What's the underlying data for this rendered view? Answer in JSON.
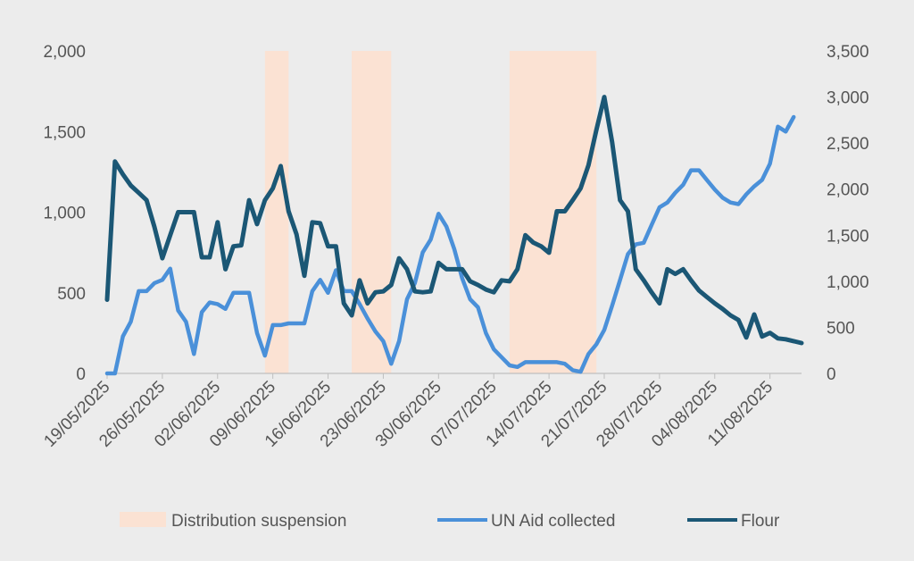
{
  "chart_data": {
    "type": "line",
    "title": "",
    "xlabel": "",
    "ylabel": "",
    "y_left": {
      "ylim": [
        0,
        2000
      ],
      "ticks": [
        0,
        500,
        1000,
        1500,
        2000
      ],
      "tick_labels": [
        "0",
        "500",
        "1,000",
        "1,500",
        "2,000"
      ]
    },
    "y_right": {
      "ylim": [
        0,
        3500
      ],
      "ticks": [
        0,
        500,
        1000,
        1500,
        2000,
        2500,
        3000,
        3500
      ],
      "tick_labels": [
        "0",
        "500",
        "1,000",
        "1,500",
        "2,000",
        "2,500",
        "3,000",
        "3,500"
      ]
    },
    "x_start": "19/05/2025",
    "x_end": "15/08/2025",
    "x_tick_labels": [
      "19/05/2025",
      "26/05/2025",
      "02/06/2025",
      "09/06/2025",
      "16/06/2025",
      "23/06/2025",
      "30/06/2025",
      "07/07/2025",
      "14/07/2025",
      "21/07/2025",
      "28/07/2025",
      "04/08/2025",
      "11/08/2025"
    ],
    "grid": false,
    "legend_position": "bottom",
    "colors": {
      "suspension": "#fbe2d3",
      "un_aid": "#4a90d9",
      "flour": "#1b5775"
    },
    "suspensions": [
      {
        "name": "Distribution suspension",
        "start": "08/06/2025",
        "end": "11/06/2025"
      },
      {
        "name": "Distribution suspension",
        "start": "19/06/2025",
        "end": "24/06/2025"
      },
      {
        "name": "Distribution suspension",
        "start": "09/07/2025",
        "end": "20/07/2025"
      }
    ],
    "series": [
      {
        "name": "UN Aid collected",
        "axis": "left",
        "points": [
          [
            "19/05/2025",
            0
          ],
          [
            "20/05/2025",
            0
          ],
          [
            "21/05/2025",
            230
          ],
          [
            "22/05/2025",
            320
          ],
          [
            "23/05/2025",
            510
          ],
          [
            "24/05/2025",
            510
          ],
          [
            "25/05/2025",
            560
          ],
          [
            "26/05/2025",
            580
          ],
          [
            "27/05/2025",
            650
          ],
          [
            "28/05/2025",
            390
          ],
          [
            "29/05/2025",
            320
          ],
          [
            "30/05/2025",
            120
          ],
          [
            "31/05/2025",
            380
          ],
          [
            "01/06/2025",
            440
          ],
          [
            "02/06/2025",
            430
          ],
          [
            "03/06/2025",
            400
          ],
          [
            "04/06/2025",
            500
          ],
          [
            "05/06/2025",
            500
          ],
          [
            "06/06/2025",
            500
          ],
          [
            "07/06/2025",
            250
          ],
          [
            "08/06/2025",
            110
          ],
          [
            "09/06/2025",
            300
          ],
          [
            "10/06/2025",
            300
          ],
          [
            "11/06/2025",
            310
          ],
          [
            "12/06/2025",
            310
          ],
          [
            "13/06/2025",
            310
          ],
          [
            "14/06/2025",
            510
          ],
          [
            "15/06/2025",
            580
          ],
          [
            "16/06/2025",
            500
          ],
          [
            "17/06/2025",
            640
          ],
          [
            "18/06/2025",
            510
          ],
          [
            "19/06/2025",
            510
          ],
          [
            "20/06/2025",
            430
          ],
          [
            "21/06/2025",
            340
          ],
          [
            "22/06/2025",
            260
          ],
          [
            "23/06/2025",
            200
          ],
          [
            "24/06/2025",
            60
          ],
          [
            "25/06/2025",
            200
          ],
          [
            "26/06/2025",
            460
          ],
          [
            "27/06/2025",
            560
          ],
          [
            "28/06/2025",
            750
          ],
          [
            "29/06/2025",
            830
          ],
          [
            "30/06/2025",
            990
          ],
          [
            "01/07/2025",
            910
          ],
          [
            "02/07/2025",
            770
          ],
          [
            "03/07/2025",
            590
          ],
          [
            "04/07/2025",
            460
          ],
          [
            "05/07/2025",
            410
          ],
          [
            "06/07/2025",
            250
          ],
          [
            "07/07/2025",
            150
          ],
          [
            "08/07/2025",
            100
          ],
          [
            "09/07/2025",
            50
          ],
          [
            "10/07/2025",
            40
          ],
          [
            "11/07/2025",
            70
          ],
          [
            "12/07/2025",
            70
          ],
          [
            "13/07/2025",
            70
          ],
          [
            "14/07/2025",
            70
          ],
          [
            "15/07/2025",
            70
          ],
          [
            "16/07/2025",
            60
          ],
          [
            "17/07/2025",
            20
          ],
          [
            "18/07/2025",
            10
          ],
          [
            "19/07/2025",
            120
          ],
          [
            "20/07/2025",
            180
          ],
          [
            "21/07/2025",
            270
          ],
          [
            "22/07/2025",
            420
          ],
          [
            "23/07/2025",
            580
          ],
          [
            "24/07/2025",
            740
          ],
          [
            "25/07/2025",
            800
          ],
          [
            "26/07/2025",
            810
          ],
          [
            "27/07/2025",
            920
          ],
          [
            "28/07/2025",
            1030
          ],
          [
            "29/07/2025",
            1060
          ],
          [
            "30/07/2025",
            1120
          ],
          [
            "31/07/2025",
            1170
          ],
          [
            "01/08/2025",
            1260
          ],
          [
            "02/08/2025",
            1260
          ],
          [
            "03/08/2025",
            1200
          ],
          [
            "04/08/2025",
            1140
          ],
          [
            "05/08/2025",
            1090
          ],
          [
            "06/08/2025",
            1060
          ],
          [
            "07/08/2025",
            1050
          ],
          [
            "08/08/2025",
            1110
          ],
          [
            "09/08/2025",
            1160
          ],
          [
            "10/08/2025",
            1200
          ],
          [
            "11/08/2025",
            1300
          ],
          [
            "12/08/2025",
            1530
          ],
          [
            "13/08/2025",
            1500
          ],
          [
            "14/08/2025",
            1590
          ]
        ]
      },
      {
        "name": "Flour",
        "axis": "right",
        "points": [
          [
            "19/05/2025",
            800
          ],
          [
            "20/05/2025",
            2300
          ],
          [
            "21/05/2025",
            2160
          ],
          [
            "22/05/2025",
            2040
          ],
          [
            "23/05/2025",
            1960
          ],
          [
            "24/05/2025",
            1880
          ],
          [
            "25/05/2025",
            1590
          ],
          [
            "26/05/2025",
            1250
          ],
          [
            "27/05/2025",
            1500
          ],
          [
            "28/05/2025",
            1750
          ],
          [
            "29/05/2025",
            1750
          ],
          [
            "30/05/2025",
            1750
          ],
          [
            "31/05/2025",
            1260
          ],
          [
            "01/06/2025",
            1260
          ],
          [
            "02/06/2025",
            1640
          ],
          [
            "03/06/2025",
            1130
          ],
          [
            "04/06/2025",
            1380
          ],
          [
            "05/06/2025",
            1390
          ],
          [
            "06/06/2025",
            1880
          ],
          [
            "07/06/2025",
            1620
          ],
          [
            "08/06/2025",
            1880
          ],
          [
            "09/06/2025",
            2010
          ],
          [
            "10/06/2025",
            2250
          ],
          [
            "11/06/2025",
            1760
          ],
          [
            "12/06/2025",
            1510
          ],
          [
            "13/06/2025",
            1060
          ],
          [
            "14/06/2025",
            1640
          ],
          [
            "15/06/2025",
            1630
          ],
          [
            "16/06/2025",
            1380
          ],
          [
            "17/06/2025",
            1380
          ],
          [
            "18/06/2025",
            760
          ],
          [
            "19/06/2025",
            630
          ],
          [
            "20/06/2025",
            1010
          ],
          [
            "21/06/2025",
            760
          ],
          [
            "22/06/2025",
            880
          ],
          [
            "23/06/2025",
            890
          ],
          [
            "24/06/2025",
            960
          ],
          [
            "25/06/2025",
            1250
          ],
          [
            "26/06/2025",
            1130
          ],
          [
            "27/06/2025",
            890
          ],
          [
            "28/06/2025",
            880
          ],
          [
            "29/06/2025",
            890
          ],
          [
            "30/06/2025",
            1200
          ],
          [
            "01/07/2025",
            1130
          ],
          [
            "02/07/2025",
            1130
          ],
          [
            "03/07/2025",
            1130
          ],
          [
            "04/07/2025",
            1000
          ],
          [
            "05/07/2025",
            960
          ],
          [
            "06/07/2025",
            910
          ],
          [
            "07/07/2025",
            880
          ],
          [
            "08/07/2025",
            1010
          ],
          [
            "09/07/2025",
            1000
          ],
          [
            "10/07/2025",
            1130
          ],
          [
            "11/07/2025",
            1500
          ],
          [
            "12/07/2025",
            1420
          ],
          [
            "13/07/2025",
            1380
          ],
          [
            "14/07/2025",
            1310
          ],
          [
            "15/07/2025",
            1760
          ],
          [
            "16/07/2025",
            1760
          ],
          [
            "17/07/2025",
            1880
          ],
          [
            "18/07/2025",
            2010
          ],
          [
            "19/07/2025",
            2260
          ],
          [
            "20/07/2025",
            2640
          ],
          [
            "21/07/2025",
            3000
          ],
          [
            "22/07/2025",
            2510
          ],
          [
            "23/07/2025",
            1880
          ],
          [
            "24/07/2025",
            1760
          ],
          [
            "25/07/2025",
            1130
          ],
          [
            "26/07/2025",
            1010
          ],
          [
            "27/07/2025",
            880
          ],
          [
            "28/07/2025",
            760
          ],
          [
            "29/07/2025",
            1130
          ],
          [
            "30/07/2025",
            1080
          ],
          [
            "31/07/2025",
            1130
          ],
          [
            "01/08/2025",
            1010
          ],
          [
            "02/08/2025",
            900
          ],
          [
            "03/08/2025",
            830
          ],
          [
            "04/08/2025",
            760
          ],
          [
            "05/08/2025",
            700
          ],
          [
            "06/08/2025",
            630
          ],
          [
            "07/08/2025",
            580
          ],
          [
            "08/08/2025",
            390
          ],
          [
            "09/08/2025",
            640
          ],
          [
            "10/08/2025",
            400
          ],
          [
            "11/08/2025",
            440
          ],
          [
            "12/08/2025",
            380
          ],
          [
            "13/08/2025",
            370
          ],
          [
            "14/08/2025",
            350
          ],
          [
            "15/08/2025",
            330
          ]
        ]
      }
    ],
    "legend": [
      {
        "label": "Distribution suspension",
        "kind": "box",
        "color": "#fbe2d3"
      },
      {
        "label": "UN Aid collected",
        "kind": "line",
        "color": "#4a90d9"
      },
      {
        "label": "Flour",
        "kind": "line",
        "color": "#1b5775"
      }
    ]
  }
}
